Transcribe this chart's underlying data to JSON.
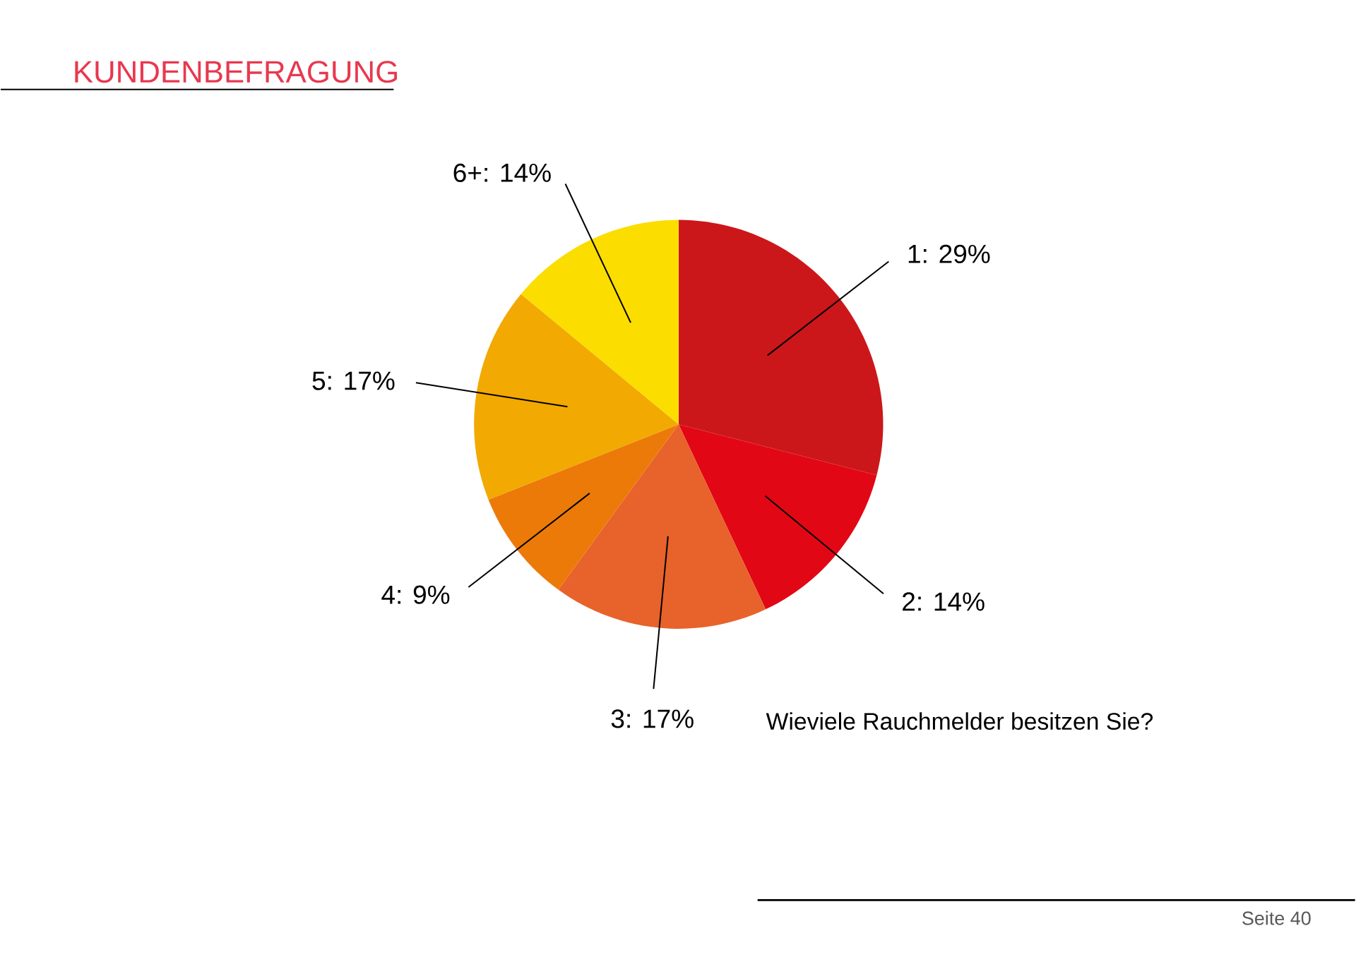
{
  "chart_data": {
    "type": "pie",
    "title": "KUNDENBEFRAGUNG",
    "categories": [
      "1: 29%",
      "2: 14%",
      "3: 17%",
      "4: 9%",
      "5: 17%",
      "6+: 14%"
    ],
    "values": [
      29,
      14,
      17,
      9,
      17,
      14
    ],
    "colors": [
      "#cc171a",
      "#e20714",
      "#e8622b",
      "#ec7a09",
      "#f2a901",
      "#fbdd00"
    ],
    "annotations": [
      "Wieviele Rauchmelder besitzen Sie?",
      "Seite 40"
    ]
  }
}
